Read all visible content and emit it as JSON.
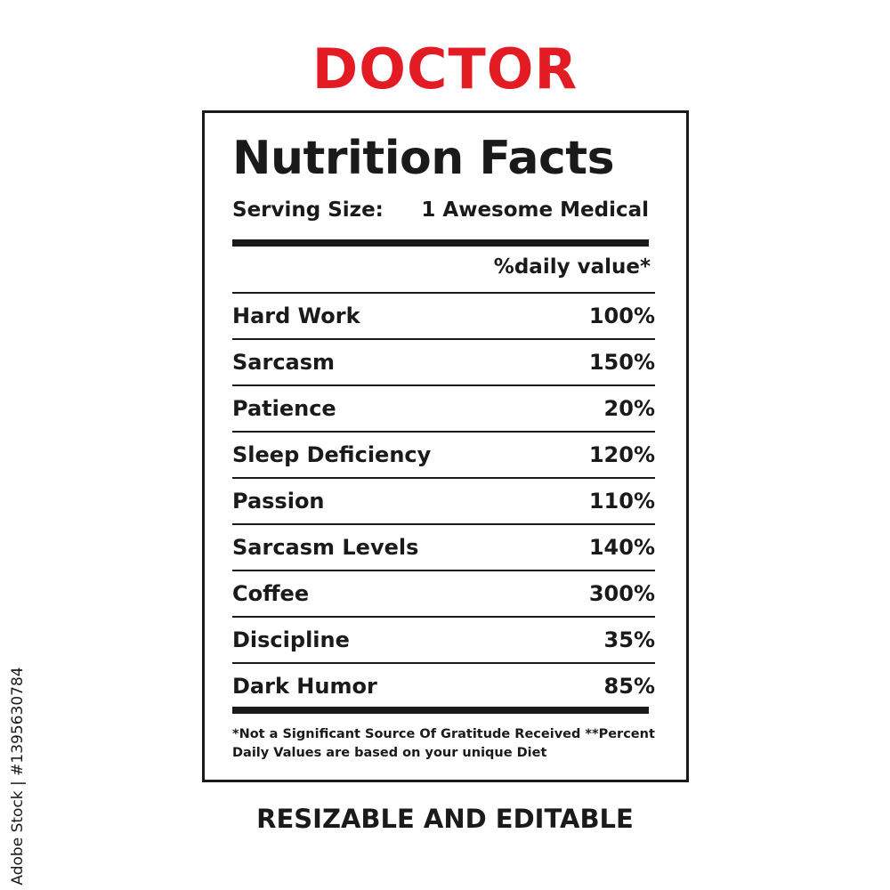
{
  "title": "DOCTOR",
  "colors": {
    "title": "#e31b23",
    "ink": "#1a1a1a",
    "background": "#ffffff"
  },
  "label": {
    "heading": "Nutrition Facts",
    "serving_label": "Serving Size:",
    "serving_value": "1 Awesome Medical",
    "daily_value_header": "%daily value*",
    "rows": [
      {
        "name": "Hard Work",
        "value": "100%"
      },
      {
        "name": "Sarcasm",
        "value": "150%"
      },
      {
        "name": "Patience",
        "value": "20%"
      },
      {
        "name": "Sleep Deficiency",
        "value": "120%"
      },
      {
        "name": "Passion",
        "value": "110%"
      },
      {
        "name": "Sarcasm Levels",
        "value": "140%"
      },
      {
        "name": "Coffee",
        "value": "300%"
      },
      {
        "name": "Discipline",
        "value": "35%"
      },
      {
        "name": "Dark Humor",
        "value": "85%"
      }
    ],
    "footnote": "*Not a Significant Source Of Gratitude Received **Percent Daily Values are based on your  unique Diet"
  },
  "bottom_text": "RESIZABLE AND EDITABLE",
  "stock_id": "Adobe Stock | #1395630784"
}
